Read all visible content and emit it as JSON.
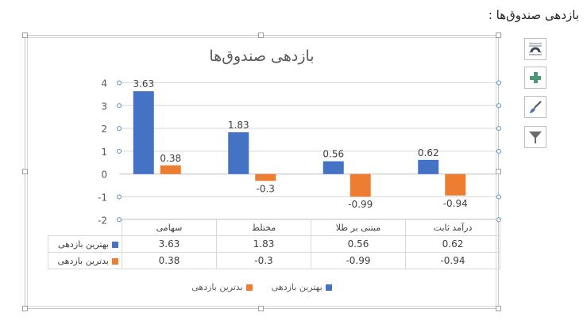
{
  "page": {
    "heading": "بازدهی صندوق‌ها :"
  },
  "chart_data": {
    "type": "bar",
    "title": "بازدهی صندوق‌ها",
    "categories": [
      "سهامی",
      "مختلط",
      "مبتنی بر طلا",
      "درآمد ثابت"
    ],
    "series": [
      {
        "name": "بهترین بازدهی",
        "color": "#4472C4",
        "values": [
          3.63,
          1.83,
          0.56,
          0.62
        ]
      },
      {
        "name": "بدترین بازدهی",
        "color": "#ED7D31",
        "values": [
          0.38,
          -0.3,
          -0.99,
          -0.94
        ]
      }
    ],
    "value_labels": [
      [
        "3.63",
        "1.83",
        "0.56",
        "0.62"
      ],
      [
        "0.38",
        "-0.3",
        "-0.99",
        "-0.94"
      ]
    ],
    "yticks": [
      "4",
      "3",
      "2",
      "1",
      "0",
      "-1",
      "-2"
    ],
    "ylim": [
      -2,
      4
    ],
    "xlabel": "",
    "ylabel": "",
    "grid": true,
    "legend_position": "bottom",
    "data_table": true
  },
  "toolbar": {
    "buttons": [
      {
        "name": "layout-options-button",
        "icon": "layout-options-icon"
      },
      {
        "name": "chart-elements-button",
        "icon": "plus-icon"
      },
      {
        "name": "chart-styles-button",
        "icon": "paintbrush-icon"
      },
      {
        "name": "chart-filters-button",
        "icon": "funnel-icon"
      }
    ]
  }
}
